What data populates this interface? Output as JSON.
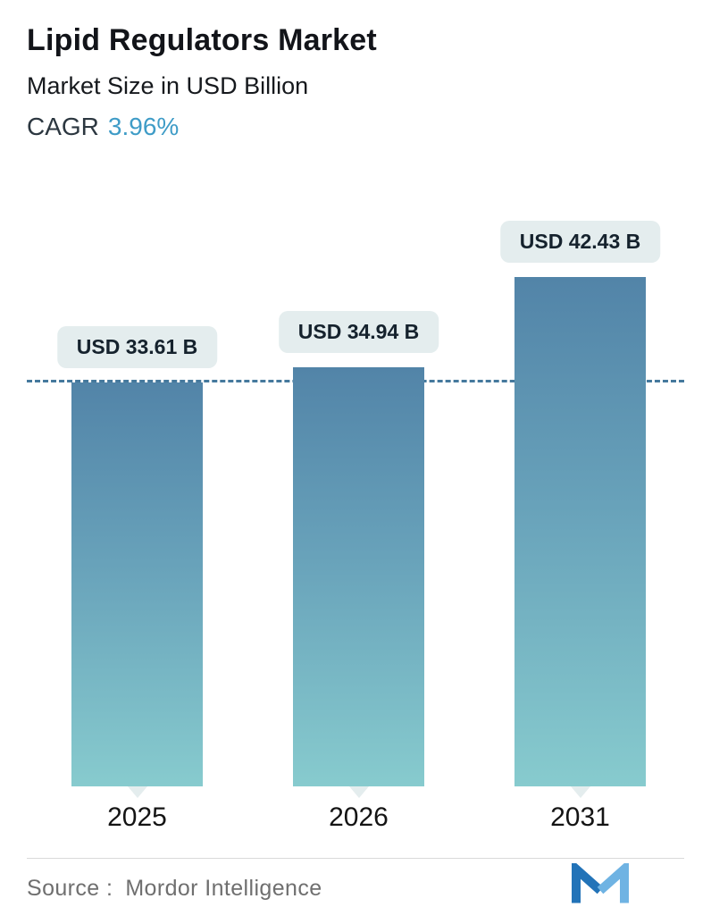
{
  "header": {
    "title": "Lipid Regulators Market",
    "subtitle": "Market Size in USD Billion",
    "cagr_label": "CAGR",
    "cagr_value": "3.96%"
  },
  "chart_data": {
    "type": "bar",
    "title": "Lipid Regulators Market",
    "subtitle": "Market Size in USD Billion",
    "cagr_percent": 3.96,
    "unit": "USD Billion",
    "categories": [
      "2025",
      "2026",
      "2031"
    ],
    "values": [
      33.61,
      34.94,
      42.43
    ],
    "value_labels": [
      "USD 33.61 B",
      "USD 34.94 B",
      "USD 42.43 B"
    ],
    "ylim": [
      0,
      42.43
    ],
    "grid": false,
    "legend": false,
    "dashed_reference_line_value": 33.61
  },
  "footer": {
    "source_label": "Source :",
    "source_name": "Mordor Intelligence",
    "logo": "mordor-intelligence-logo"
  },
  "colors": {
    "accent": "#3f9cc7",
    "bar_gradient_top": "#5284a8",
    "bar_gradient_bottom": "#87cbce",
    "dashed_line": "#45799d",
    "badge_bg": "#e4edee",
    "badge_text": "#15222d",
    "axis_label": "#141414",
    "source_text": "#6f6f6f",
    "logo_dark": "#2273b8",
    "logo_light": "#6fb3e3"
  }
}
